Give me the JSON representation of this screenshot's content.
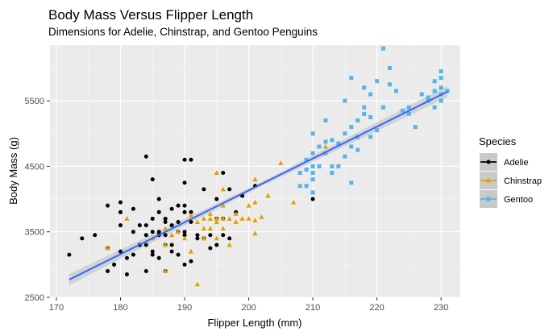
{
  "chart_data": {
    "type": "scatter",
    "title": "Body Mass Versus Flipper Length",
    "subtitle": "Dimensions for Adelie, Chinstrap, and Gentoo Penguins",
    "xlabel": "Flipper Length (mm)",
    "ylabel": "Body Mass (g)",
    "xlim": [
      169,
      233
    ],
    "ylim": [
      2500,
      6350
    ],
    "x_ticks": [
      170,
      180,
      190,
      200,
      210,
      220,
      230
    ],
    "y_ticks": [
      2500,
      3500,
      4500,
      5500
    ],
    "grid": true,
    "legend": {
      "title": "Species",
      "position": "right",
      "entries": [
        "Adelie",
        "Chinstrap",
        "Gentoo"
      ]
    },
    "series": [
      {
        "name": "Adelie",
        "color": "#000000",
        "marker": "circle",
        "points": [
          [
            172,
            3150
          ],
          [
            174,
            3400
          ],
          [
            176,
            3450
          ],
          [
            178,
            3900
          ],
          [
            178,
            2900
          ],
          [
            178,
            3250
          ],
          [
            179,
            3000
          ],
          [
            180,
            3950
          ],
          [
            180,
            3800
          ],
          [
            180,
            3600
          ],
          [
            180,
            3200
          ],
          [
            181,
            3100
          ],
          [
            181,
            2850
          ],
          [
            182,
            3150
          ],
          [
            182,
            3850
          ],
          [
            182,
            3500
          ],
          [
            183,
            3600
          ],
          [
            183,
            3300
          ],
          [
            184,
            4650
          ],
          [
            184,
            3600
          ],
          [
            184,
            3300
          ],
          [
            184,
            3450
          ],
          [
            184,
            2900
          ],
          [
            185,
            3200
          ],
          [
            185,
            3700
          ],
          [
            185,
            3500
          ],
          [
            185,
            3150
          ],
          [
            185,
            4300
          ],
          [
            186,
            3800
          ],
          [
            186,
            3500
          ],
          [
            186,
            4000
          ],
          [
            186,
            3100
          ],
          [
            186,
            3450
          ],
          [
            187,
            3450
          ],
          [
            187,
            2900
          ],
          [
            187,
            3650
          ],
          [
            187,
            3700
          ],
          [
            187,
            3300
          ],
          [
            188,
            3300
          ],
          [
            188,
            3600
          ],
          [
            188,
            3850
          ],
          [
            188,
            3200
          ],
          [
            189,
            3650
          ],
          [
            189,
            3500
          ],
          [
            189,
            3900
          ],
          [
            189,
            3150
          ],
          [
            190,
            3800
          ],
          [
            190,
            4250
          ],
          [
            190,
            3000
          ],
          [
            190,
            4600
          ],
          [
            190,
            3500
          ],
          [
            190,
            3900
          ],
          [
            190,
            3450
          ],
          [
            191,
            3800
          ],
          [
            191,
            4600
          ],
          [
            191,
            3050
          ],
          [
            191,
            3650
          ],
          [
            192,
            3400
          ],
          [
            192,
            3450
          ],
          [
            193,
            4150
          ],
          [
            193,
            3400
          ],
          [
            194,
            3250
          ],
          [
            194,
            3450
          ],
          [
            195,
            3300
          ],
          [
            195,
            4000
          ],
          [
            195,
            3700
          ],
          [
            196,
            4400
          ],
          [
            196,
            3700
          ],
          [
            196,
            3450
          ],
          [
            197,
            3400
          ],
          [
            197,
            4150
          ],
          [
            198,
            3800
          ],
          [
            199,
            4050
          ],
          [
            201,
            4200
          ],
          [
            210,
            4000
          ]
        ]
      },
      {
        "name": "Chinstrap",
        "color": "#e69f00",
        "marker": "triangle",
        "points": [
          [
            178,
            3250
          ],
          [
            181,
            3700
          ],
          [
            185,
            3400
          ],
          [
            187,
            3550
          ],
          [
            187,
            3300
          ],
          [
            188,
            3450
          ],
          [
            189,
            3500
          ],
          [
            190,
            3400
          ],
          [
            191,
            3200
          ],
          [
            191,
            3750
          ],
          [
            192,
            2700
          ],
          [
            192,
            3650
          ],
          [
            193,
            3400
          ],
          [
            193,
            3700
          ],
          [
            193,
            3550
          ],
          [
            194,
            3550
          ],
          [
            194,
            3700
          ],
          [
            195,
            3650
          ],
          [
            195,
            3700
          ],
          [
            195,
            4400
          ],
          [
            196,
            3900
          ],
          [
            196,
            3700
          ],
          [
            196,
            4150
          ],
          [
            196,
            3550
          ],
          [
            197,
            3300
          ],
          [
            197,
            3700
          ],
          [
            198,
            3775
          ],
          [
            198,
            3650
          ],
          [
            199,
            3700
          ],
          [
            200,
            3700
          ],
          [
            200,
            3900
          ],
          [
            201,
            3475
          ],
          [
            201,
            4300
          ],
          [
            201,
            3675
          ],
          [
            201,
            3950
          ],
          [
            202,
            3725
          ],
          [
            203,
            4050
          ],
          [
            205,
            4550
          ],
          [
            207,
            3950
          ],
          [
            210,
            4100
          ],
          [
            212,
            4800
          ],
          [
            187,
            2900
          ],
          [
            194,
            3775
          ],
          [
            195,
            3400
          ]
        ]
      },
      {
        "name": "Gentoo",
        "color": "#56b4e9",
        "marker": "square",
        "points": [
          [
            208,
            4400
          ],
          [
            208,
            4200
          ],
          [
            209,
            4600
          ],
          [
            209,
            4200
          ],
          [
            209,
            4450
          ],
          [
            210,
            4100
          ],
          [
            210,
            4400
          ],
          [
            210,
            4700
          ],
          [
            210,
            5000
          ],
          [
            210,
            4500
          ],
          [
            210,
            4300
          ],
          [
            211,
            4500
          ],
          [
            211,
            4800
          ],
          [
            212,
            4875
          ],
          [
            212,
            4700
          ],
          [
            212,
            5200
          ],
          [
            213,
            4400
          ],
          [
            213,
            4900
          ],
          [
            213,
            4500
          ],
          [
            214,
            4850
          ],
          [
            214,
            4500
          ],
          [
            215,
            5000
          ],
          [
            215,
            5500
          ],
          [
            215,
            4650
          ],
          [
            216,
            5850
          ],
          [
            216,
            4800
          ],
          [
            216,
            5100
          ],
          [
            216,
            4250
          ],
          [
            217,
            5200
          ],
          [
            217,
            4950
          ],
          [
            217,
            4750
          ],
          [
            218,
            5300
          ],
          [
            218,
            5700
          ],
          [
            218,
            5400
          ],
          [
            219,
            5600
          ],
          [
            219,
            5250
          ],
          [
            219,
            4950
          ],
          [
            220,
            5050
          ],
          [
            220,
            5800
          ],
          [
            221,
            5400
          ],
          [
            221,
            6300
          ],
          [
            222,
            5750
          ],
          [
            222,
            6000
          ],
          [
            223,
            5650
          ],
          [
            224,
            5350
          ],
          [
            225,
            5300
          ],
          [
            225,
            5400
          ],
          [
            226,
            5100
          ],
          [
            227,
            5600
          ],
          [
            228,
            5500
          ],
          [
            229,
            5800
          ],
          [
            229,
            5650
          ],
          [
            230,
            5600
          ],
          [
            230,
            5950
          ],
          [
            230,
            5850
          ],
          [
            230,
            5700
          ],
          [
            230,
            5500
          ],
          [
            231,
            5650
          ],
          [
            229,
            5400
          ],
          [
            228,
            5550
          ]
        ]
      }
    ],
    "trend_line": {
      "method": "lm",
      "color": "#3366ff",
      "band_color": "#c9c9c9",
      "start": [
        172,
        2770
      ],
      "end": [
        231,
        5640
      ]
    }
  }
}
